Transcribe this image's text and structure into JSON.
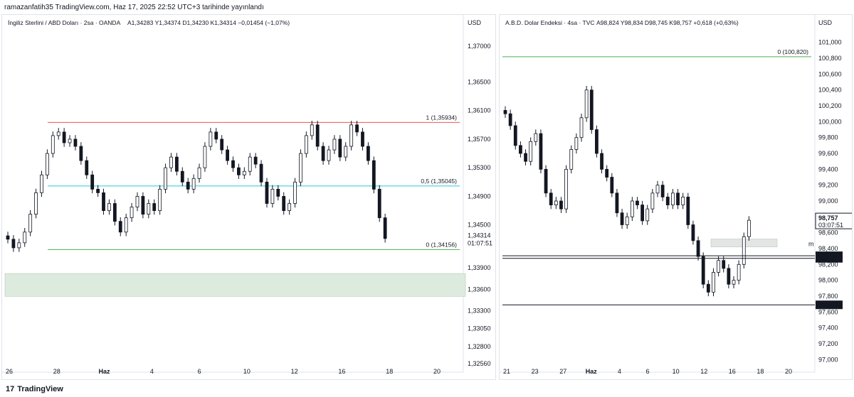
{
  "header": {
    "published_text": "ramazanfatih35 TradingView.com, Haz 17, 2025 22:52 UTC+3 tarihinde yayınlandı"
  },
  "footer": {
    "logo_text": "TradingView",
    "logo_mark": "17"
  },
  "chart_data": [
    {
      "type": "candlestick",
      "title": "İngiliz Sterlini / ABD Doları · 2sa · OANDA",
      "ohlc_text": "A1,34283  Y1,34374  D1,34230  K1,34314  −0,01454 (−1,07%)",
      "currency_label": "USD",
      "ylim": [
        1.3245,
        1.3722
      ],
      "y_ticks": [
        "1,37000",
        "1,36500",
        "1,36100",
        "1,35700",
        "1,35300",
        "1,34900",
        "1,34500",
        "1,33900",
        "1,33600",
        "1,33300",
        "1,33050",
        "1,32800",
        "1,32560"
      ],
      "x_ticks": [
        "26",
        "28",
        "Haz",
        "4",
        "6",
        "10",
        "12",
        "16",
        "18",
        "20"
      ],
      "last_price": {
        "value": 1.34314,
        "label": "1,34314",
        "countdown": "01:07:51",
        "color": "#131722"
      },
      "levels": [
        {
          "value": 1.35934,
          "label": "1 (1,35934)",
          "color": "#ef5350"
        },
        {
          "value": 1.35045,
          "label": "0,5 (1,35045)",
          "color": "#26c6da"
        },
        {
          "value": 1.34156,
          "label": "0 (1,34156)",
          "color": "#4caf50"
        }
      ],
      "zones": [
        {
          "from": 1.335,
          "to": 1.3382,
          "color": "#dcebdd"
        }
      ],
      "series": {
        "x_range": [
          0,
          80
        ],
        "points": [
          [
            0,
            1.343
          ],
          [
            1,
            1.3418
          ],
          [
            2,
            1.3425
          ],
          [
            3,
            1.344
          ],
          [
            4,
            1.3465
          ],
          [
            5,
            1.3495
          ],
          [
            6,
            1.352
          ],
          [
            7,
            1.355
          ],
          [
            8,
            1.3575
          ],
          [
            9,
            1.358
          ],
          [
            10,
            1.3565
          ],
          [
            11,
            1.357
          ],
          [
            12,
            1.356
          ],
          [
            13,
            1.354
          ],
          [
            14,
            1.352
          ],
          [
            15,
            1.35
          ],
          [
            16,
            1.3495
          ],
          [
            17,
            1.347
          ],
          [
            18,
            1.348
          ],
          [
            19,
            1.3455
          ],
          [
            20,
            1.344
          ],
          [
            21,
            1.346
          ],
          [
            22,
            1.3475
          ],
          [
            23,
            1.349
          ],
          [
            24,
            1.3465
          ],
          [
            25,
            1.348
          ],
          [
            26,
            1.347
          ],
          [
            27,
            1.35
          ],
          [
            28,
            1.353
          ],
          [
            29,
            1.3545
          ],
          [
            30,
            1.3525
          ],
          [
            31,
            1.351
          ],
          [
            32,
            1.35
          ],
          [
            33,
            1.3515
          ],
          [
            34,
            1.353
          ],
          [
            35,
            1.356
          ],
          [
            36,
            1.358
          ],
          [
            37,
            1.357
          ],
          [
            38,
            1.3555
          ],
          [
            39,
            1.354
          ],
          [
            40,
            1.353
          ],
          [
            41,
            1.352
          ],
          [
            42,
            1.3525
          ],
          [
            43,
            1.3545
          ],
          [
            44,
            1.3535
          ],
          [
            45,
            1.351
          ],
          [
            46,
            1.348
          ],
          [
            47,
            1.35
          ],
          [
            48,
            1.349
          ],
          [
            49,
            1.347
          ],
          [
            50,
            1.348
          ],
          [
            51,
            1.351
          ],
          [
            52,
            1.355
          ],
          [
            53,
            1.3575
          ],
          [
            54,
            1.359
          ],
          [
            55,
            1.356
          ],
          [
            56,
            1.354
          ],
          [
            57,
            1.3555
          ],
          [
            58,
            1.357
          ],
          [
            59,
            1.3545
          ],
          [
            60,
            1.356
          ],
          [
            61,
            1.359
          ],
          [
            62,
            1.358
          ],
          [
            63,
            1.356
          ],
          [
            64,
            1.354
          ],
          [
            65,
            1.35
          ],
          [
            66,
            1.346
          ],
          [
            67,
            1.3431
          ]
        ]
      }
    },
    {
      "type": "candlestick",
      "title": "A.B.D. Dolar Endeksi · 4sa · TVC",
      "ohlc_text": "A98,824  Y98,834  D98,745  K98,757  +0,618 (+0,63%)",
      "currency_label": "USD",
      "ylim": [
        96.85,
        101.15
      ],
      "y_ticks": [
        "101,000",
        "100,800",
        "100,600",
        "100,400",
        "100,200",
        "100,000",
        "99,800",
        "99,600",
        "99,400",
        "99,200",
        "99,000",
        "98,800",
        "98,600",
        "98,400",
        "98,200",
        "98,000",
        "97,800",
        "97,600",
        "97,400",
        "97,200",
        "97,000"
      ],
      "x_ticks": [
        "21",
        "23",
        "27",
        "Haz",
        "4",
        "6",
        "10",
        "12",
        "16",
        "18",
        "20"
      ],
      "last_price": {
        "value": 98.757,
        "label": "98,757",
        "countdown": "03:07:51",
        "color": "#131722"
      },
      "price_flags": [
        {
          "value": 98.309,
          "label": "98,309"
        },
        {
          "value": 98.277,
          "label": "98,277"
        },
        {
          "value": 97.69,
          "label": "97,690"
        }
      ],
      "levels": [
        {
          "value": 100.82,
          "label": "0 (100,820)",
          "color": "#4caf50"
        }
      ],
      "marker_text": "m",
      "zones": [
        {
          "from": 98.42,
          "to": 98.52,
          "color": "#e4e4e4"
        }
      ],
      "series": {
        "x_range": [
          0,
          60
        ],
        "points": [
          [
            0,
            100.1
          ],
          [
            1,
            99.95
          ],
          [
            2,
            99.7
          ],
          [
            3,
            99.6
          ],
          [
            4,
            99.5
          ],
          [
            5,
            99.75
          ],
          [
            6,
            99.85
          ],
          [
            7,
            99.4
          ],
          [
            8,
            99.1
          ],
          [
            9,
            98.95
          ],
          [
            10,
            99.0
          ],
          [
            11,
            98.9
          ],
          [
            12,
            99.4
          ],
          [
            13,
            99.65
          ],
          [
            14,
            99.8
          ],
          [
            15,
            100.05
          ],
          [
            16,
            100.4
          ],
          [
            17,
            99.9
          ],
          [
            18,
            99.6
          ],
          [
            19,
            99.4
          ],
          [
            20,
            99.3
          ],
          [
            21,
            99.1
          ],
          [
            22,
            98.85
          ],
          [
            23,
            98.7
          ],
          [
            24,
            98.8
          ],
          [
            25,
            99.0
          ],
          [
            26,
            98.95
          ],
          [
            27,
            98.75
          ],
          [
            28,
            98.9
          ],
          [
            29,
            99.1
          ],
          [
            30,
            99.2
          ],
          [
            31,
            99.05
          ],
          [
            32,
            98.95
          ],
          [
            33,
            99.1
          ],
          [
            34,
            98.95
          ],
          [
            35,
            99.05
          ],
          [
            36,
            98.7
          ],
          [
            37,
            98.5
          ],
          [
            38,
            98.3
          ],
          [
            39,
            97.95
          ],
          [
            40,
            97.85
          ],
          [
            41,
            98.1
          ],
          [
            42,
            98.25
          ],
          [
            43,
            98.15
          ],
          [
            44,
            97.95
          ],
          [
            45,
            98.0
          ],
          [
            46,
            98.2
          ],
          [
            47,
            98.55
          ],
          [
            48,
            98.757
          ]
        ]
      }
    }
  ]
}
